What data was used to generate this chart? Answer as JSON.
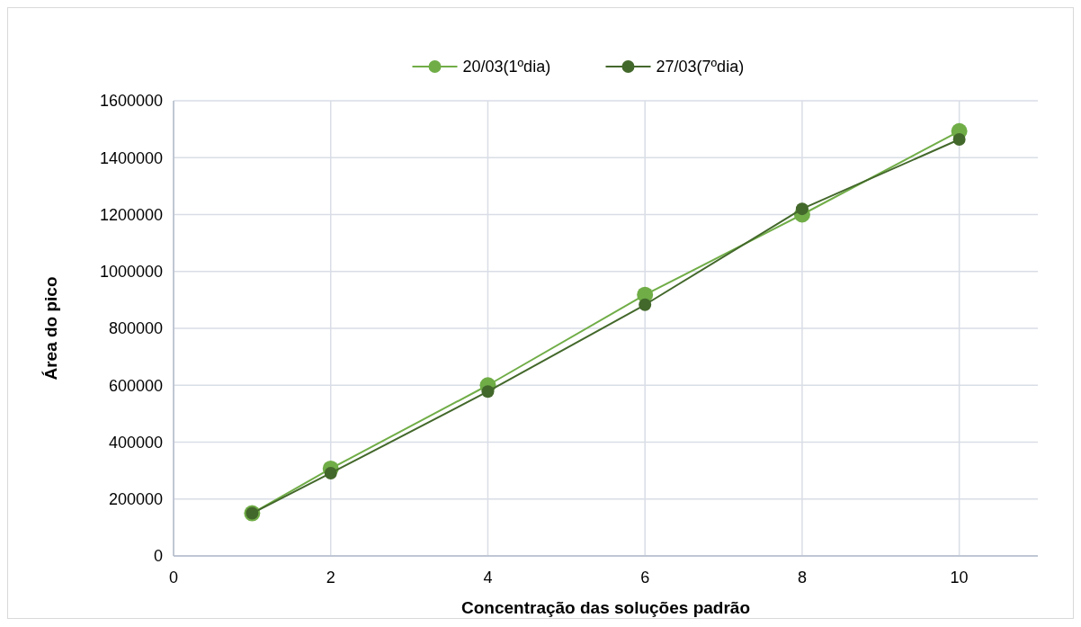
{
  "chart_data": {
    "type": "line",
    "xlabel": "Concentração das soluções padrão",
    "ylabel": "Área do pico",
    "x": [
      1,
      2,
      4,
      6,
      8,
      10
    ],
    "series": [
      {
        "name": "20/03(1ºdia)",
        "color": "#70ad47",
        "values": [
          150000,
          307000,
          600000,
          918000,
          1200000,
          1493000
        ]
      },
      {
        "name": "27/03(7ºdia)",
        "color": "#43682b",
        "values": [
          150000,
          291000,
          578000,
          883000,
          1220000,
          1464000
        ]
      }
    ],
    "xlim": [
      0,
      11
    ],
    "xticks": [
      0,
      2,
      4,
      6,
      8,
      10
    ],
    "ylim": [
      0,
      1600000
    ],
    "yticks": [
      0,
      200000,
      400000,
      600000,
      800000,
      1000000,
      1200000,
      1400000,
      1600000
    ],
    "grid": true,
    "legend": "top",
    "marker": "circle",
    "line_style": "solid"
  }
}
